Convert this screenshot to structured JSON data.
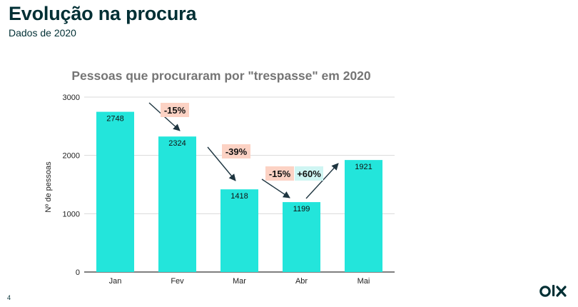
{
  "slide": {
    "title": "Evolução na procura",
    "subtitle": "Dados de 2020",
    "page_number": "4"
  },
  "logo": {
    "icon": "olx-logo",
    "text": "olx"
  },
  "chart_data": {
    "type": "bar",
    "title": "Pessoas que procuraram por \"trespasse\" em 2020",
    "xlabel": "",
    "ylabel": "Nº de pessoas",
    "categories": [
      "Jan",
      "Fev",
      "Mar",
      "Abr",
      "Mai"
    ],
    "values": [
      2748,
      2324,
      1418,
      1199,
      1921
    ],
    "data_labels": [
      "2748",
      "2324",
      "1418",
      "1199",
      "1921"
    ],
    "ylim": [
      0,
      3000
    ],
    "yticks": [
      0,
      1000,
      2000,
      3000
    ],
    "grid": true,
    "bar_color": "#23e5db",
    "annotations": [
      {
        "label": "-15%",
        "from": "Jan",
        "to": "Fev",
        "color": "#fcd2c4"
      },
      {
        "label": "-39%",
        "from": "Fev",
        "to": "Mar",
        "color": "#fcd2c4"
      },
      {
        "label": "-15%",
        "from": "Mar",
        "to": "Abr",
        "color": "#fcd2c4"
      },
      {
        "label": "+60%",
        "from": "Abr",
        "to": "Mai",
        "color": "#cff5f3"
      }
    ]
  }
}
